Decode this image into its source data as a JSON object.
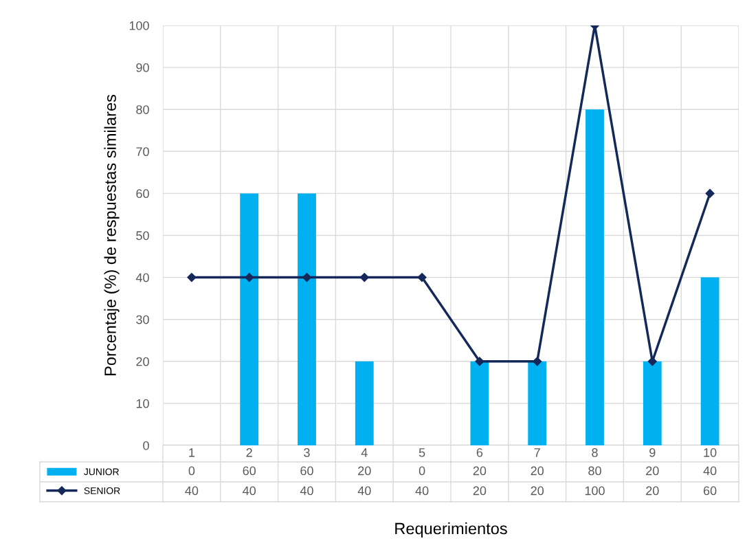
{
  "chart_data": {
    "type": "bar",
    "xlabel": "Requerimientos",
    "ylabel": "Porcentaje (%) de respuestas similares",
    "categories": [
      "1",
      "2",
      "3",
      "4",
      "5",
      "6",
      "7",
      "8",
      "9",
      "10"
    ],
    "series": [
      {
        "name": "JUNIOR",
        "color": "#00b0f0",
        "values": [
          0,
          60,
          60,
          20,
          0,
          20,
          20,
          80,
          20,
          40
        ]
      },
      {
        "name": "SENIOR",
        "type": "line",
        "color": "#14285a",
        "marker": "diamond",
        "line_style": "solid",
        "values": [
          40,
          40,
          40,
          40,
          40,
          20,
          20,
          100,
          20,
          60
        ]
      }
    ],
    "ylim": [
      0,
      100
    ],
    "yticks": [
      0,
      10,
      20,
      30,
      40,
      50,
      60,
      70,
      80,
      90,
      100
    ],
    "grid": true,
    "legend": "bottom",
    "data_labels": true
  }
}
